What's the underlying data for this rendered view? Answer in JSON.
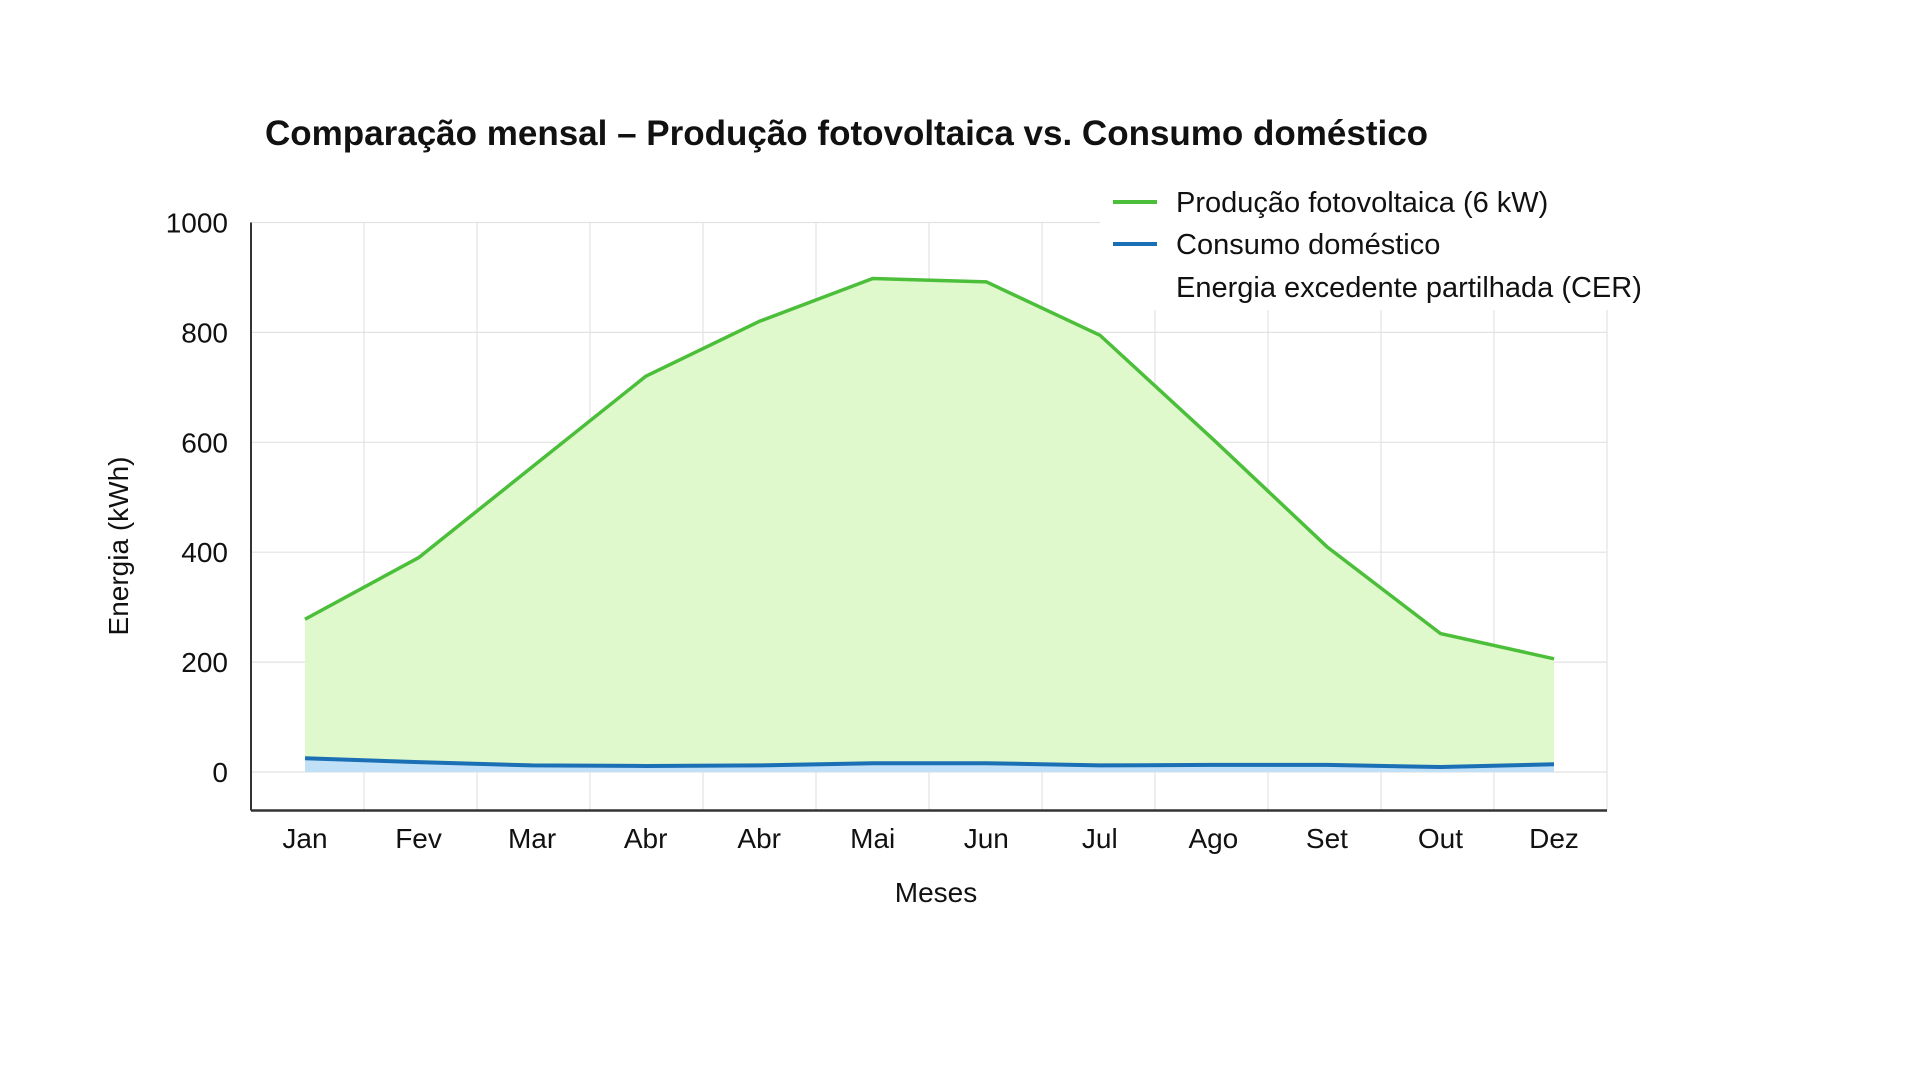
{
  "chart_data": {
    "type": "area",
    "title": "Comparação mensal – Produção fotovoltaica vs. Consumo doméstico",
    "xlabel": "Meses",
    "ylabel": "Energia (kWh)",
    "ylim": [
      -70,
      1000
    ],
    "yticks": [
      0,
      200,
      400,
      600,
      800,
      1000
    ],
    "grid": true,
    "legend_position": "top-right",
    "categories": [
      "Jan",
      "Fev",
      "Mar",
      "Abr",
      "Abr",
      "Mai",
      "Jun",
      "Jul",
      "Ago",
      "Set",
      "Out",
      "Dez"
    ],
    "series": [
      {
        "name": "Produção fotovoltaica (6 kW)",
        "color": "#4cbf3a",
        "fill": "#dff8cc",
        "values": [
          278,
          390,
          555,
          720,
          820,
          898,
          892,
          795,
          605,
          410,
          252,
          206
        ]
      },
      {
        "name": "Consumo doméstico",
        "color": "#1a6fb5",
        "fill": "#bfe0f7",
        "values": [
          25,
          18,
          12,
          11,
          12,
          16,
          16,
          12,
          13,
          13,
          9,
          14
        ]
      }
    ],
    "extra_legend": "Energia excedente partilhada (CER)"
  }
}
